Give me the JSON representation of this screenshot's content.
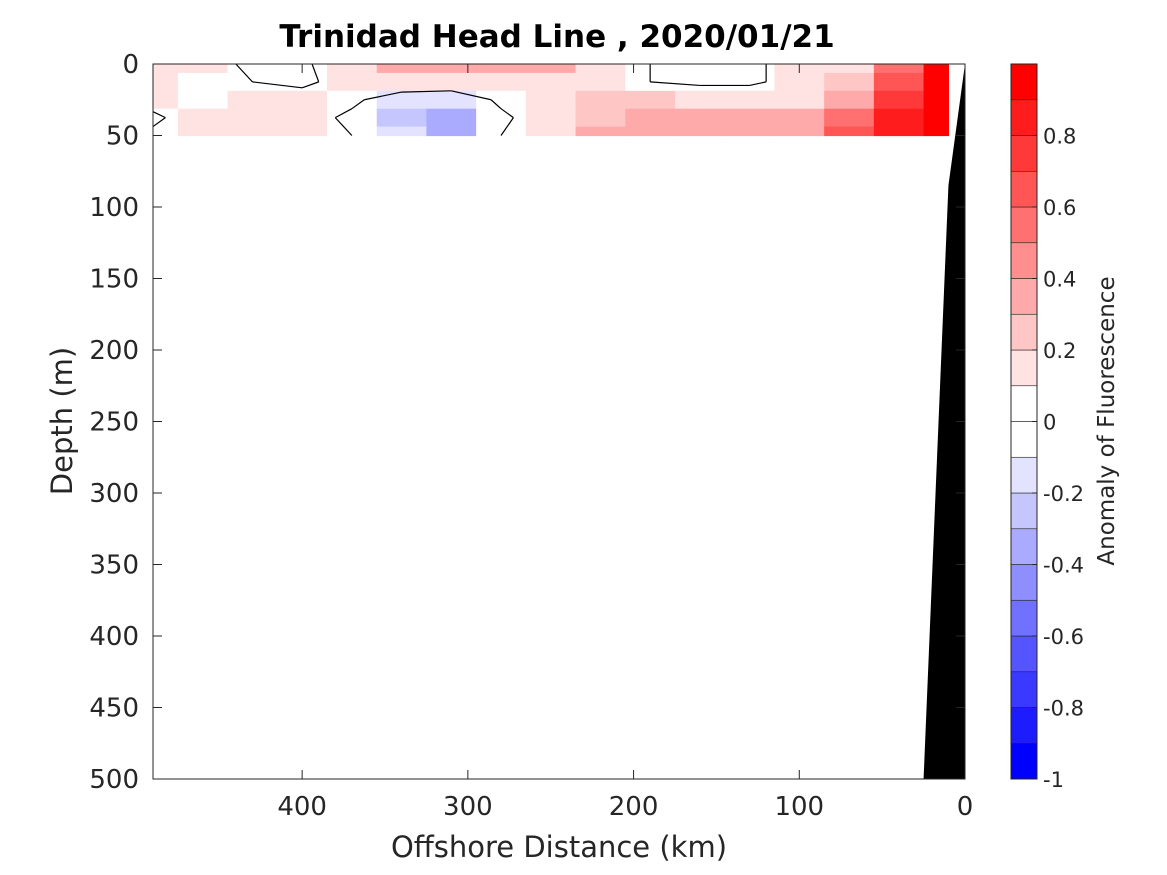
{
  "chart_data": {
    "type": "heatmap",
    "title": "Trinidad Head Line , 2020/01/21",
    "xlabel": "Offshore Distance (km)",
    "ylabel": "Depth (m)",
    "xlim": [
      490,
      0
    ],
    "ylim": [
      0,
      500
    ],
    "x_ticks": [
      {
        "value": 400,
        "label": "400"
      },
      {
        "value": 300,
        "label": "300"
      },
      {
        "value": 200,
        "label": "200"
      },
      {
        "value": 100,
        "label": "100"
      },
      {
        "value": 0,
        "label": "0"
      }
    ],
    "y_ticks": [
      {
        "value": 0,
        "label": "0"
      },
      {
        "value": 50,
        "label": "50"
      },
      {
        "value": 100,
        "label": "100"
      },
      {
        "value": 150,
        "label": "150"
      },
      {
        "value": 200,
        "label": "200"
      },
      {
        "value": 250,
        "label": "250"
      },
      {
        "value": 300,
        "label": "300"
      },
      {
        "value": 350,
        "label": "350"
      },
      {
        "value": 400,
        "label": "400"
      },
      {
        "value": 450,
        "label": "450"
      },
      {
        "value": 500,
        "label": "500"
      }
    ],
    "x_distance_km": [
      490,
      460,
      430,
      400,
      370,
      340,
      310,
      280,
      250,
      220,
      190,
      160,
      130,
      100,
      70,
      40,
      10
    ],
    "depth_m": [
      0,
      12.5,
      25,
      37.5,
      50
    ],
    "anomaly": [
      [
        0.1,
        0.1,
        -0.05,
        -0.05,
        0.2,
        0.3,
        0.35,
        0.3,
        0.3,
        0.2,
        0.0,
        -0.05,
        -0.05,
        0.1,
        0.2,
        0.5,
        0.95
      ],
      [
        0.15,
        0.05,
        0.0,
        -0.05,
        0.1,
        0.2,
        0.2,
        0.2,
        0.2,
        0.2,
        0.0,
        -0.05,
        -0.05,
        0.1,
        0.25,
        0.6,
        0.95
      ],
      [
        0.1,
        0.05,
        0.1,
        0.1,
        0.05,
        -0.15,
        -0.2,
        0.05,
        0.2,
        0.25,
        0.25,
        0.2,
        0.2,
        0.2,
        0.35,
        0.75,
        0.95
      ],
      [
        -0.05,
        0.15,
        0.1,
        0.1,
        -0.05,
        -0.25,
        -0.35,
        -0.05,
        0.15,
        0.25,
        0.3,
        0.3,
        0.3,
        0.3,
        0.5,
        0.85,
        0.95
      ],
      [
        0.05,
        0.15,
        0.1,
        0.1,
        0.0,
        -0.2,
        -0.3,
        0.0,
        0.2,
        0.3,
        0.3,
        0.35,
        0.35,
        0.4,
        0.6,
        0.9,
        0.95
      ]
    ],
    "contour_level": 0,
    "bathymetry": [
      {
        "x": 0,
        "depth": 0
      },
      {
        "x": 10,
        "depth": 85
      },
      {
        "x": 25,
        "depth": 500
      }
    ],
    "colorbar": {
      "label": "Anomaly of Fluorescence",
      "range": [
        -1,
        1
      ],
      "step": 0.1,
      "ticks": [
        {
          "value": 0.8,
          "label": "0.8"
        },
        {
          "value": 0.6,
          "label": "0.6"
        },
        {
          "value": 0.4,
          "label": "0.4"
        },
        {
          "value": 0.2,
          "label": "0.2"
        },
        {
          "value": 0,
          "label": "0"
        },
        {
          "value": -0.2,
          "label": "-0.2"
        },
        {
          "value": -0.4,
          "label": "-0.4"
        },
        {
          "value": -0.6,
          "label": "-0.6"
        },
        {
          "value": -0.8,
          "label": "-0.8"
        },
        {
          "value": -1,
          "label": "-1"
        }
      ]
    },
    "colors": {
      "positive_max": "#ff0000",
      "negative_max": "#0000ff",
      "neutral": "#ffffff",
      "bathymetry": "#000000"
    },
    "grid": false
  }
}
